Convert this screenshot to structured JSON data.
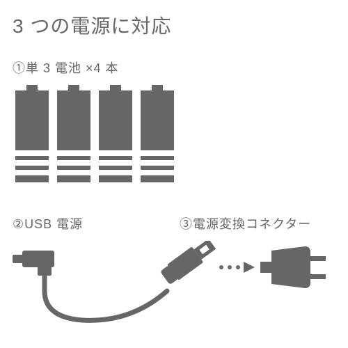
{
  "colors": {
    "ink": "#666666",
    "bg": "#ffffff",
    "white": "#ffffff"
  },
  "title": "3 つの電源に対応",
  "section1": {
    "label": "①単 3 電池 ×4 本",
    "battery_count": 4
  },
  "section2": {
    "label": "②USB 電源"
  },
  "section3": {
    "label": "③電源変換コネクター"
  },
  "battery": {
    "w": 48,
    "h": 132,
    "nub_w": 16,
    "nub_h": 8,
    "stripe_h": 8,
    "stripe_gap": 6,
    "stripe_count": 3
  },
  "layout": {
    "title_fontsize": 28,
    "label_fontsize": 18,
    "battery_gap": 12
  }
}
